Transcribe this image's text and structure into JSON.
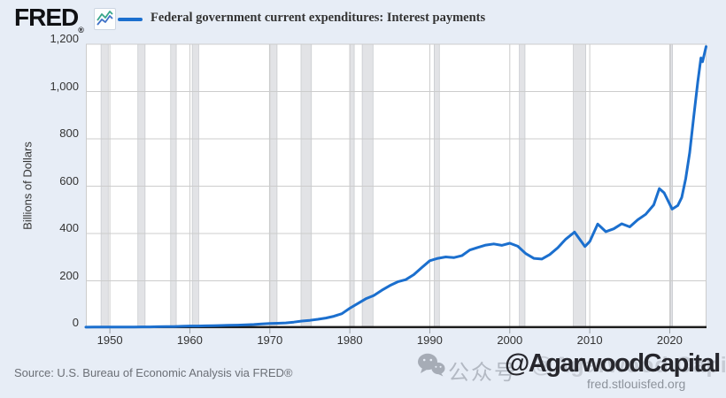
{
  "header": {
    "logo_text": "FRED",
    "logo_reg": "®",
    "legend_label": "Federal government current expenditures: Interest payments"
  },
  "y_axis": {
    "title": "Billions of Dollars",
    "tick_labels": [
      "1,200",
      "1,000",
      "800",
      "600",
      "400",
      "200",
      "0"
    ],
    "tick_values": [
      1200,
      1000,
      800,
      600,
      400,
      200,
      0
    ]
  },
  "x_axis": {
    "tick_labels": [
      "1950",
      "1960",
      "1970",
      "1980",
      "1990",
      "2000",
      "2010",
      "2020"
    ],
    "tick_values": [
      1950,
      1960,
      1970,
      1980,
      1990,
      2000,
      2010,
      2020
    ]
  },
  "footer": {
    "source": "Source: U.S. Bureau of Economic Analysis via FRED®"
  },
  "watermark": {
    "prefix": "公众号",
    "ghost_text": "@Agarwood Capital",
    "bold_text": "@AgarwoodCapital",
    "site": "fred.stlouisfed.org"
  },
  "colors": {
    "background": "#e7edf6",
    "plot_bg": "#ffffff",
    "grid": "#cccccc",
    "recession": "#e2e3e6",
    "recession_edge": "#c9cbcf",
    "line": "#1b6fce",
    "axis": "#1c1c1c",
    "tick_mark": "#9aa0a6",
    "fred_teal": "#37a68a",
    "fred_blue": "#3f72c8"
  },
  "chart_data": {
    "type": "line",
    "title": "Federal government current expenditures: Interest payments",
    "xlabel": "",
    "ylabel": "Billions of Dollars",
    "x_range": [
      1947,
      2024.6
    ],
    "y_range": [
      0,
      1200
    ],
    "y_gridline_step": 200,
    "x_gridlines": [
      1950,
      1960,
      1970,
      1980,
      1990,
      2000,
      2010,
      2020
    ],
    "legend_position": "top",
    "grid": true,
    "recessions": [
      [
        1948.9,
        1949.8
      ],
      [
        1953.5,
        1954.4
      ],
      [
        1957.6,
        1958.3
      ],
      [
        1960.3,
        1961.1
      ],
      [
        1969.95,
        1970.9
      ],
      [
        1973.9,
        1975.2
      ],
      [
        1980.0,
        1980.55
      ],
      [
        1981.55,
        1982.9
      ],
      [
        1990.55,
        1991.2
      ],
      [
        2001.2,
        2001.9
      ],
      [
        2007.95,
        2009.5
      ],
      [
        2020.1,
        2020.35
      ]
    ],
    "series": [
      {
        "name": "Federal government current expenditures: Interest payments",
        "color": "#1b6fce",
        "points": [
          [
            1947,
            4.0
          ],
          [
            1948,
            4.4
          ],
          [
            1949,
            4.5
          ],
          [
            1950,
            4.6
          ],
          [
            1951,
            4.7
          ],
          [
            1952,
            4.8
          ],
          [
            1953,
            5.0
          ],
          [
            1954,
            5.2
          ],
          [
            1955,
            5.4
          ],
          [
            1956,
            5.9
          ],
          [
            1957,
            6.6
          ],
          [
            1958,
            6.9
          ],
          [
            1959,
            7.9
          ],
          [
            1960,
            8.9
          ],
          [
            1961,
            9.1
          ],
          [
            1962,
            9.9
          ],
          [
            1963,
            10.5
          ],
          [
            1964,
            11.1
          ],
          [
            1965,
            11.8
          ],
          [
            1966,
            12.8
          ],
          [
            1967,
            14.0
          ],
          [
            1968,
            15.4
          ],
          [
            1969,
            17.6
          ],
          [
            1970,
            19.6
          ],
          [
            1971,
            20.6
          ],
          [
            1972,
            22.2
          ],
          [
            1973,
            25.6
          ],
          [
            1974,
            30.0
          ],
          [
            1975,
            33.0
          ],
          [
            1976,
            37.5
          ],
          [
            1977,
            42.5
          ],
          [
            1978,
            50.0
          ],
          [
            1979,
            61.0
          ],
          [
            1980,
            84.0
          ],
          [
            1981,
            104.0
          ],
          [
            1982,
            124.0
          ],
          [
            1983,
            138.0
          ],
          [
            1984,
            160.0
          ],
          [
            1985,
            180.0
          ],
          [
            1986,
            196.0
          ],
          [
            1987,
            205.0
          ],
          [
            1988,
            226.0
          ],
          [
            1989,
            256.0
          ],
          [
            1990,
            285.0
          ],
          [
            1991,
            295.0
          ],
          [
            1992,
            301.0
          ],
          [
            1993,
            298.0
          ],
          [
            1994,
            306.0
          ],
          [
            1995,
            330.0
          ],
          [
            1996,
            341.0
          ],
          [
            1997,
            351.0
          ],
          [
            1998,
            356.0
          ],
          [
            1999,
            350.0
          ],
          [
            2000,
            359.0
          ],
          [
            2001,
            346.0
          ],
          [
            2002,
            315.0
          ],
          [
            2003,
            295.0
          ],
          [
            2004,
            292.0
          ],
          [
            2005,
            311.0
          ],
          [
            2006,
            340.0
          ],
          [
            2007,
            376.0
          ],
          [
            2008.1,
            406.0
          ],
          [
            2009.4,
            345.0
          ],
          [
            2010,
            366.0
          ],
          [
            2011,
            440.0
          ],
          [
            2012,
            408.0
          ],
          [
            2013,
            420.0
          ],
          [
            2014,
            441.0
          ],
          [
            2015,
            428.0
          ],
          [
            2016,
            458.0
          ],
          [
            2017,
            481.0
          ],
          [
            2018,
            521.0
          ],
          [
            2018.7,
            590.0
          ],
          [
            2019.3,
            572.0
          ],
          [
            2020.3,
            503.0
          ],
          [
            2021,
            518.0
          ],
          [
            2021.5,
            552.0
          ],
          [
            2022,
            632.0
          ],
          [
            2022.5,
            742.0
          ],
          [
            2023,
            892.0
          ],
          [
            2023.5,
            1040.0
          ],
          [
            2023.9,
            1142.0
          ],
          [
            2024.1,
            1126.0
          ],
          [
            2024.55,
            1190.0
          ]
        ]
      }
    ]
  }
}
